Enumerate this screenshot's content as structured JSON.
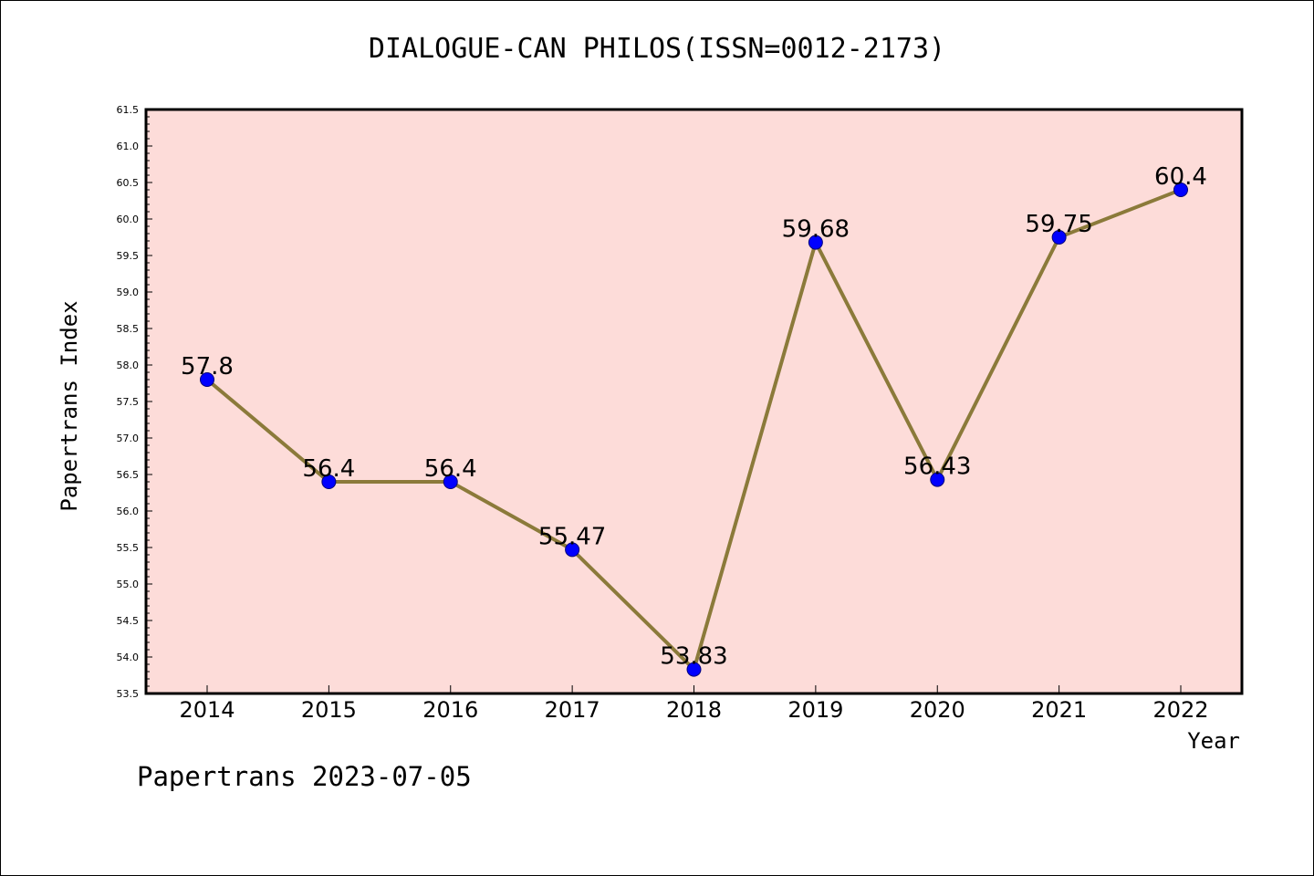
{
  "title": "DIALOGUE-CAN PHILOS(ISSN=0012-2173)",
  "footer": "Papertrans 2023-07-05",
  "colors": {
    "plot_background": "#fddcd9",
    "line": "#8b7a3a",
    "marker": "#0000ff"
  },
  "chart_data": {
    "type": "line",
    "xlabel": "Year",
    "ylabel": "Papertrans Index",
    "categories": [
      "2014",
      "2015",
      "2016",
      "2017",
      "2018",
      "2019",
      "2020",
      "2021",
      "2022"
    ],
    "series": [
      {
        "values": [
          57.8,
          56.4,
          56.4,
          55.47,
          53.83,
          59.68,
          56.43,
          59.75,
          60.4
        ],
        "labels": [
          "57.8",
          "56.4",
          "56.4",
          "55.47",
          "53.83",
          "59.68",
          "56.43",
          "59.75",
          "60.4"
        ]
      }
    ],
    "ylim": [
      53.5,
      61.5
    ],
    "yticks": [
      "53.5",
      "54.0",
      "54.5",
      "55.0",
      "55.5",
      "56.0",
      "56.5",
      "57.0",
      "57.5",
      "58.0",
      "58.5",
      "59.0",
      "59.5",
      "60.0",
      "60.5",
      "61.0",
      "61.5"
    ],
    "grid": false,
    "legend": "none"
  }
}
